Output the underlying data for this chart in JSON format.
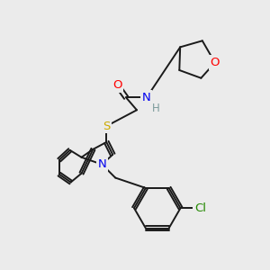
{
  "bg_color": "#ebebeb",
  "bond_color": "#1a1a1a",
  "atom_colors": {
    "O": "#ff0000",
    "N": "#0000ee",
    "S": "#ccaa00",
    "Cl": "#228800",
    "H": "#7a9a9a",
    "C": "#1a1a1a"
  },
  "figsize": [
    3.0,
    3.0
  ],
  "dpi": 100,
  "lw": 1.4,
  "fontsize": 9.5
}
